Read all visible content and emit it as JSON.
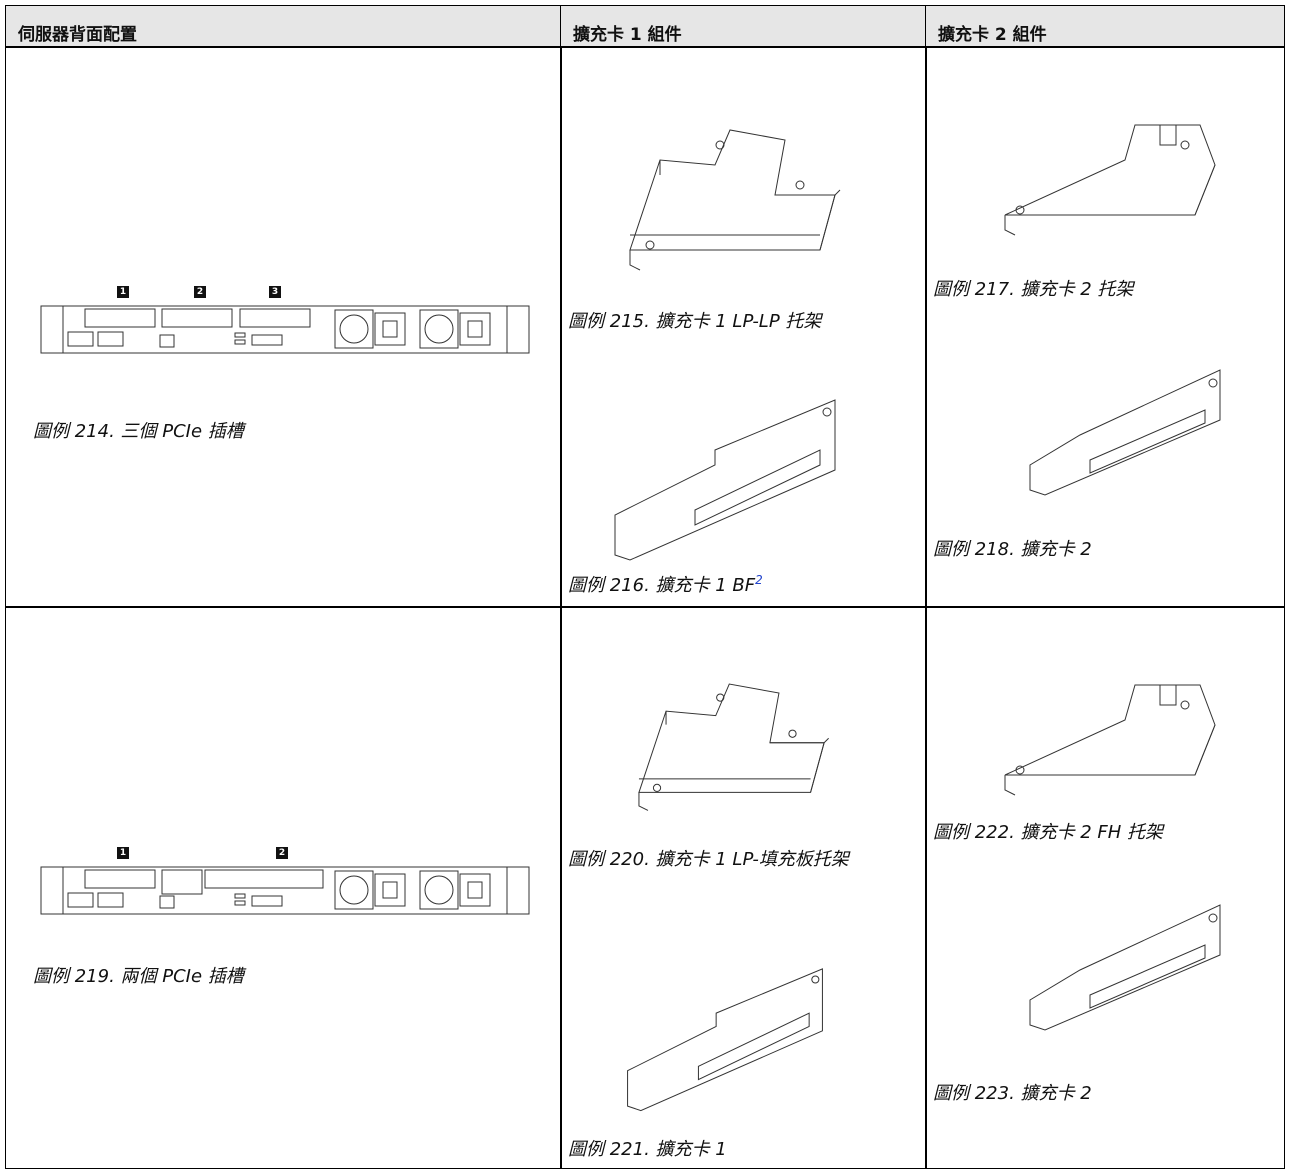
{
  "table": {
    "headers": [
      "伺服器背面配置",
      "擴充卡 1 組件",
      "擴充卡 2 組件"
    ],
    "rows": [
      [
        {
          "callouts": [
            "1",
            "2",
            "3"
          ],
          "caption": "圖例 214. 三個 PCIe 插槽"
        },
        {
          "figures": [
            {
              "caption": "圖例 215. 擴充卡 1 LP-LP 托架"
            },
            {
              "caption": "圖例 216. 擴充卡 1 BF",
              "note_ref": "2"
            }
          ]
        },
        {
          "figures": [
            {
              "caption": "圖例 217. 擴充卡 2 托架"
            },
            {
              "caption": "圖例 218. 擴充卡 2"
            }
          ]
        }
      ],
      [
        {
          "callouts": [
            "1",
            "2"
          ],
          "caption": "圖例 219. 兩個 PCIe 插槽"
        },
        {
          "figures": [
            {
              "caption": "圖例 220. 擴充卡 1 LP-填充板托架"
            },
            {
              "caption": "圖例 221. 擴充卡 1"
            }
          ]
        },
        {
          "figures": [
            {
              "caption": "圖例 222. 擴充卡 2 FH 托架"
            },
            {
              "caption": "圖例 223. 擴充卡 2"
            }
          ]
        }
      ]
    ]
  }
}
